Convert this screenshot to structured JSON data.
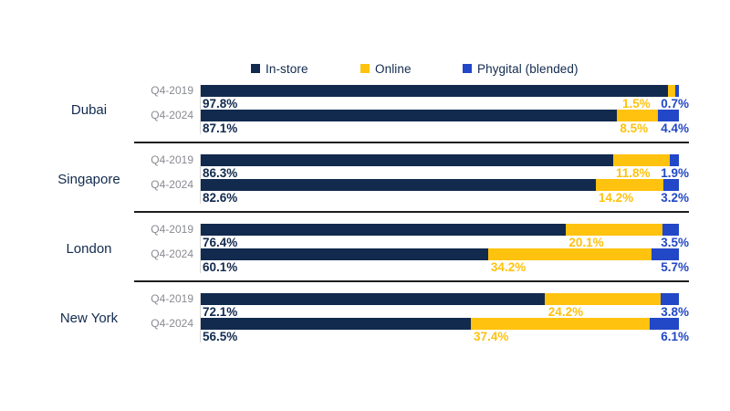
{
  "legend": {
    "items": [
      {
        "label": "In-store",
        "color": "#112A4E"
      },
      {
        "label": "Online",
        "color": "#FFC20E"
      },
      {
        "label": "Phygital (blended)",
        "color": "#2247C7"
      }
    ]
  },
  "chart_data": {
    "type": "bar",
    "subtype": "horizontal-stacked",
    "unit": "%",
    "xlim": [
      0,
      100
    ],
    "grid": false,
    "legend_position": "top",
    "series_names": [
      "In-store",
      "Online",
      "Phygital (blended)"
    ],
    "series_colors": [
      "#112A4E",
      "#FFC20E",
      "#2247C7"
    ],
    "categories": [
      "Dubai",
      "Singapore",
      "London",
      "New York"
    ],
    "periods": [
      "Q4-2019",
      "Q4-2024"
    ],
    "groups": [
      {
        "city": "Dubai",
        "rows": [
          {
            "period": "Q4-2019",
            "values": [
              97.8,
              1.5,
              0.7
            ],
            "labels": [
              "97.8%",
              "1.5%",
              "0.7%"
            ]
          },
          {
            "period": "Q4-2024",
            "values": [
              87.1,
              8.5,
              4.4
            ],
            "labels": [
              "87.1%",
              "8.5%",
              "4.4%"
            ]
          }
        ]
      },
      {
        "city": "Singapore",
        "rows": [
          {
            "period": "Q4-2019",
            "values": [
              86.3,
              11.8,
              1.9
            ],
            "labels": [
              "86.3%",
              "11.8%",
              "1.9%"
            ]
          },
          {
            "period": "Q4-2024",
            "values": [
              82.6,
              14.2,
              3.2
            ],
            "labels": [
              "82.6%",
              "14.2%",
              "3.2%"
            ]
          }
        ]
      },
      {
        "city": "London",
        "rows": [
          {
            "period": "Q4-2019",
            "values": [
              76.4,
              20.1,
              3.5
            ],
            "labels": [
              "76.4%",
              "20.1%",
              "3.5%"
            ]
          },
          {
            "period": "Q4-2024",
            "values": [
              60.1,
              34.2,
              5.7
            ],
            "labels": [
              "60.1%",
              "34.2%",
              "5.7%"
            ]
          }
        ]
      },
      {
        "city": "New York",
        "rows": [
          {
            "period": "Q4-2019",
            "values": [
              72.1,
              24.2,
              3.8
            ],
            "labels": [
              "72.1%",
              "24.2%",
              "3.8%"
            ]
          },
          {
            "period": "Q4-2024",
            "values": [
              56.5,
              37.4,
              6.1
            ],
            "labels": [
              "56.5%",
              "37.4%",
              "6.1%"
            ]
          }
        ]
      }
    ]
  }
}
